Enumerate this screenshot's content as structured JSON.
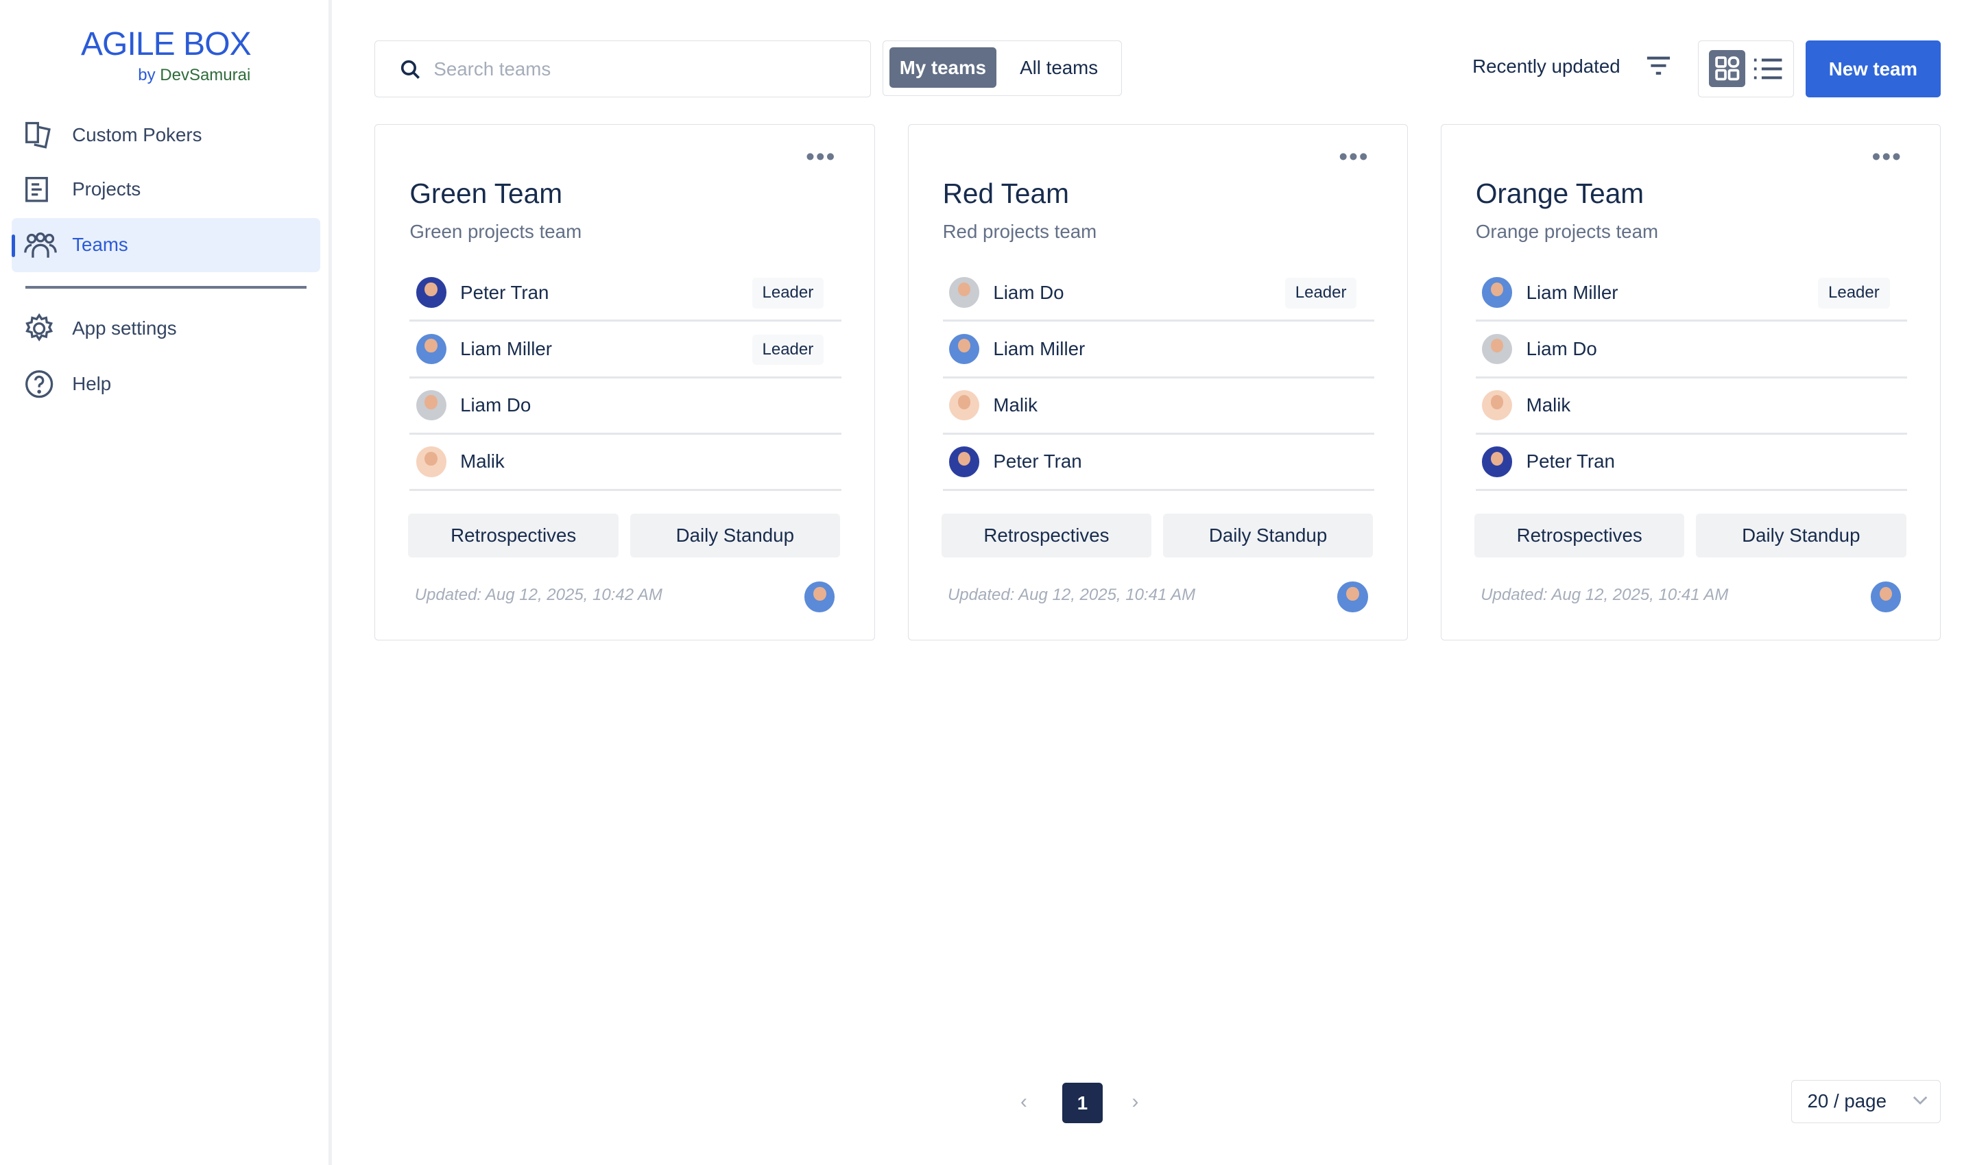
{
  "sidebar": {
    "logo": "AGILE BOX",
    "by": "by",
    "brand": "DevSamurai",
    "items": [
      {
        "label": "Custom Pokers",
        "icon": "cards-icon"
      },
      {
        "label": "Projects",
        "icon": "document-icon"
      },
      {
        "label": "Teams",
        "icon": "people-icon",
        "active": true
      }
    ],
    "bottom_items": [
      {
        "label": "App settings",
        "icon": "gear-icon"
      },
      {
        "label": "Help",
        "icon": "help-icon"
      }
    ]
  },
  "toolbar": {
    "search_placeholder": "Search teams",
    "search_value": "",
    "tabs": [
      "My teams",
      "All teams"
    ],
    "active_tab": "My teams",
    "sort": "Recently updated",
    "view": "grid",
    "new_team": "New team"
  },
  "colors": {
    "accent": "#2f66d9",
    "active_tab": "#626f86",
    "page_active": "#1c2b4f"
  },
  "teams": [
    {
      "name": "Green Team",
      "description": "Green projects team",
      "members": [
        {
          "name": "Peter Tran",
          "role": "Leader",
          "avatar": "#2b3ea0"
        },
        {
          "name": "Liam Miller",
          "role": "Leader",
          "avatar": "#5b8ad8"
        },
        {
          "name": "Liam Do",
          "role": "",
          "avatar": "#c9ccd1"
        },
        {
          "name": "Malik",
          "role": "",
          "avatar": "#f6d3bd"
        }
      ],
      "actions": [
        "Retrospectives",
        "Daily Standup"
      ],
      "updated": "Updated: Aug 12, 2025, 10:42 AM"
    },
    {
      "name": "Red Team",
      "description": "Red projects team",
      "members": [
        {
          "name": "Liam Do",
          "role": "Leader",
          "avatar": "#c9ccd1"
        },
        {
          "name": "Liam Miller",
          "role": "",
          "avatar": "#5b8ad8"
        },
        {
          "name": "Malik",
          "role": "",
          "avatar": "#f6d3bd"
        },
        {
          "name": "Peter Tran",
          "role": "",
          "avatar": "#2b3ea0"
        }
      ],
      "actions": [
        "Retrospectives",
        "Daily Standup"
      ],
      "updated": "Updated: Aug 12, 2025, 10:41 AM"
    },
    {
      "name": "Orange Team",
      "description": "Orange projects team",
      "members": [
        {
          "name": "Liam Miller",
          "role": "Leader",
          "avatar": "#5b8ad8"
        },
        {
          "name": "Liam Do",
          "role": "",
          "avatar": "#c9ccd1"
        },
        {
          "name": "Malik",
          "role": "",
          "avatar": "#f6d3bd"
        },
        {
          "name": "Peter Tran",
          "role": "",
          "avatar": "#2b3ea0"
        }
      ],
      "actions": [
        "Retrospectives",
        "Daily Standup"
      ],
      "updated": "Updated: Aug 12, 2025, 10:41 AM"
    }
  ],
  "pagination": {
    "current": "1",
    "page_size": "20 / page"
  }
}
